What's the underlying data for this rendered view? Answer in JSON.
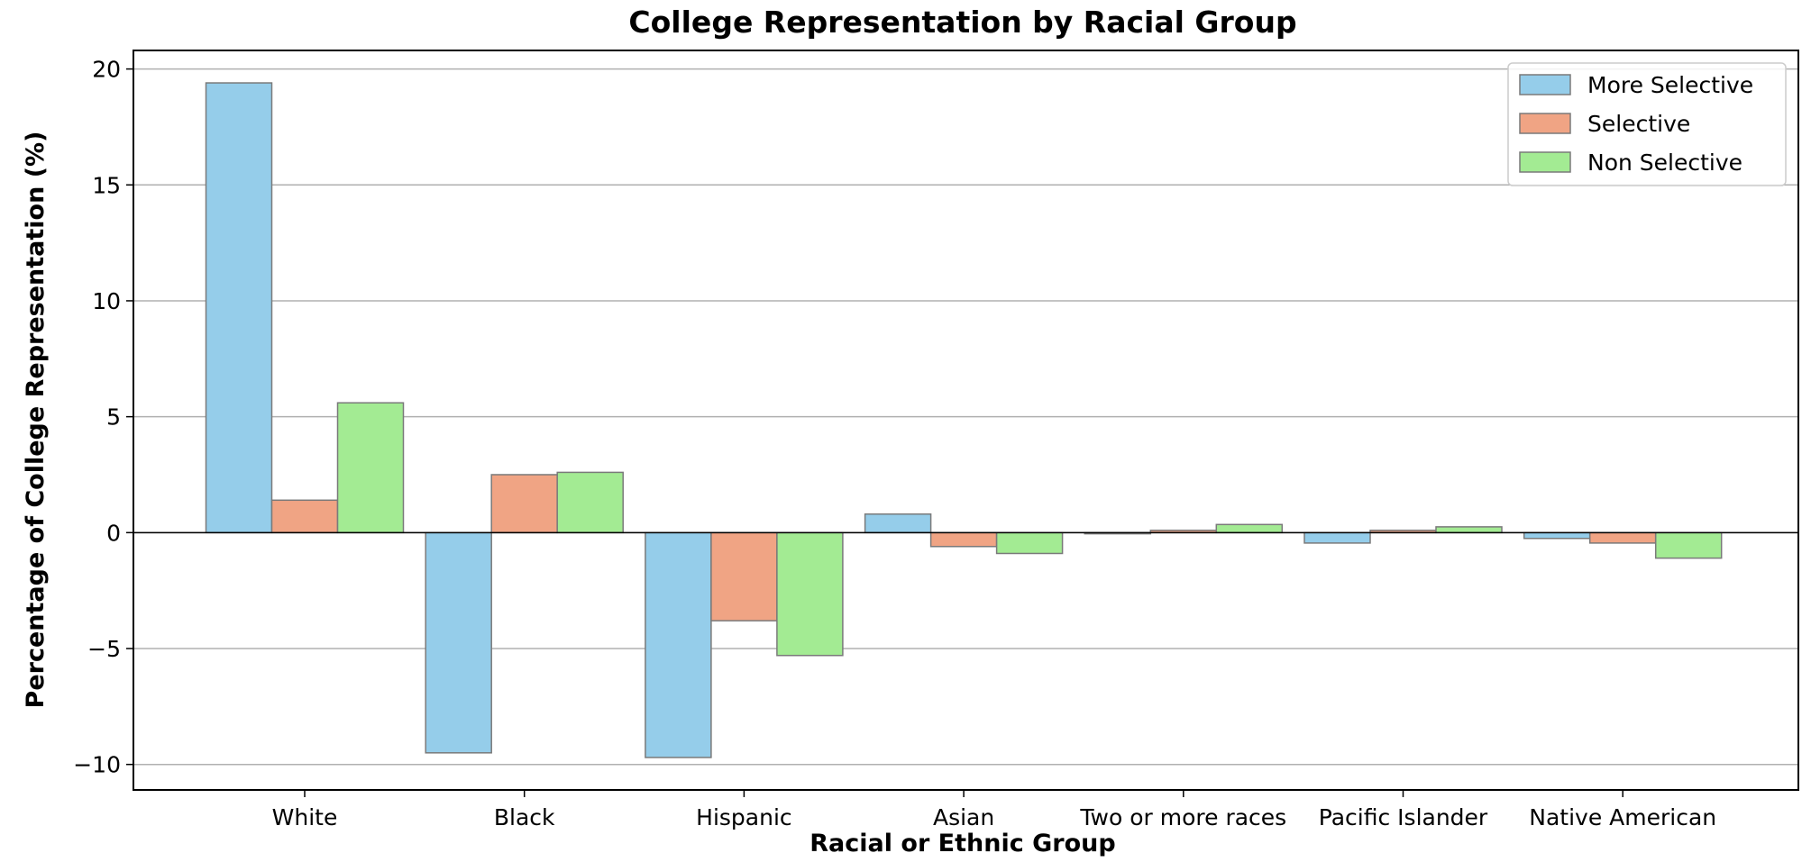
{
  "colors": {
    "more_selective": "#95CDEA",
    "selective": "#F0A484",
    "non_selective": "#A3EB93",
    "bar_edge": "#7a7a7a",
    "grid": "#b0b0b0",
    "zero_line": "#000000"
  },
  "chart_data": {
    "type": "bar",
    "title": "College Representation by Racial Group",
    "xlabel": "Racial or Ethnic Group",
    "ylabel": "Percentage of College Representation (%)",
    "categories": [
      "White",
      "Black",
      "Hispanic",
      "Asian",
      "Two or more races",
      "Pacific Islander",
      "Native American"
    ],
    "series": [
      {
        "name": "More Selective",
        "color_key": "more_selective",
        "values": [
          19.4,
          -9.5,
          -9.7,
          0.8,
          -0.05,
          -0.45,
          -0.25
        ]
      },
      {
        "name": "Selective",
        "color_key": "selective",
        "values": [
          1.4,
          2.5,
          -3.8,
          -0.6,
          0.1,
          0.1,
          -0.45
        ]
      },
      {
        "name": "Non Selective",
        "color_key": "non_selective",
        "values": [
          5.6,
          2.6,
          -5.3,
          -0.9,
          0.35,
          0.25,
          -1.1
        ]
      }
    ],
    "ylim": [
      -11.1,
      20.8
    ],
    "yticks": [
      20,
      15,
      10,
      5,
      0,
      -5,
      -10
    ],
    "ytick_labels": [
      "20",
      "15",
      "10",
      "5",
      "0",
      "−5",
      "−10"
    ],
    "grid": "y",
    "zero_line": true,
    "legend_position": "top-right"
  }
}
